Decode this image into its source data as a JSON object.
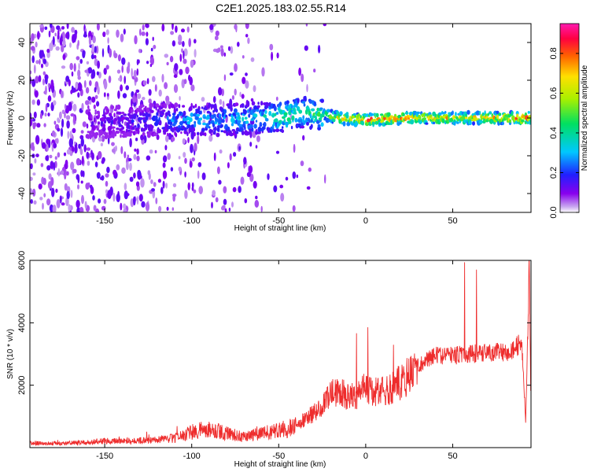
{
  "title": "C2E1.2025.183.02.55.R14",
  "chart_data": [
    {
      "type": "heatmap",
      "xlabel": "Height of straight line (km)",
      "ylabel": "Frequency (Hz)",
      "xlim": [
        -193,
        95
      ],
      "ylim": [
        -50,
        50
      ],
      "xticks": [
        "-150",
        "-100",
        "-50",
        "0",
        "50"
      ],
      "xtick_values": [
        -150,
        -100,
        -50,
        0,
        50
      ],
      "yticks": [
        "-40",
        "-20",
        "0",
        "20",
        "40"
      ],
      "ytick_values": [
        -40,
        -20,
        0,
        20,
        40
      ],
      "colorbar": {
        "label": "Normalized spectral amplitude",
        "ticks": [
          "0.0",
          "0.2",
          "0.4",
          "0.6",
          "0.8"
        ],
        "tick_values": [
          0.0,
          0.2,
          0.4,
          0.6,
          0.8
        ],
        "range": [
          0.0,
          0.95
        ]
      },
      "ridge": {
        "x": [
          -160,
          -140,
          -120,
          -100,
          -80,
          -60,
          -45,
          -35,
          -25,
          -15,
          0,
          20,
          50,
          80,
          95
        ],
        "y": [
          -2,
          -2,
          -1,
          -1,
          -1,
          0,
          1,
          3,
          2,
          0,
          -1,
          0,
          0,
          0,
          0
        ],
        "amplitude": [
          0.12,
          0.15,
          0.2,
          0.3,
          0.3,
          0.35,
          0.45,
          0.4,
          0.45,
          0.7,
          0.8,
          0.75,
          0.65,
          0.7,
          0.8
        ]
      }
    },
    {
      "type": "line",
      "xlabel": "Height of straight line (km)",
      "ylabel": "SNR (10 * v/v)",
      "xlim": [
        -193,
        95
      ],
      "ylim": [
        0,
        6000
      ],
      "xticks": [
        "-150",
        "-100",
        "-50",
        "0",
        "50"
      ],
      "xtick_values": [
        -150,
        -100,
        -50,
        0,
        50
      ],
      "yticks": [
        "2000",
        "4000",
        "6000"
      ],
      "ytick_values": [
        2000,
        4000,
        6000
      ],
      "series": [
        {
          "color": "#ee2c2c",
          "x": [
            -193,
            -180,
            -160,
            -150,
            -140,
            -130,
            -120,
            -110,
            -100,
            -90,
            -85,
            -80,
            -70,
            -60,
            -50,
            -40,
            -35,
            -30,
            -25,
            -20,
            -15,
            -10,
            -5,
            0,
            5,
            10,
            15,
            20,
            25,
            30,
            35,
            40,
            50,
            60,
            70,
            80,
            85,
            88,
            90,
            92,
            94,
            95
          ],
          "y": [
            150,
            130,
            160,
            220,
            200,
            230,
            250,
            300,
            500,
            600,
            550,
            450,
            350,
            450,
            550,
            700,
            900,
            1100,
            1400,
            1700,
            1800,
            1600,
            1700,
            1900,
            1750,
            1800,
            1900,
            2100,
            2350,
            2600,
            2850,
            2950,
            2950,
            3000,
            3050,
            3050,
            3150,
            3300,
            3100,
            800,
            5800,
            1000
          ]
        }
      ]
    }
  ]
}
